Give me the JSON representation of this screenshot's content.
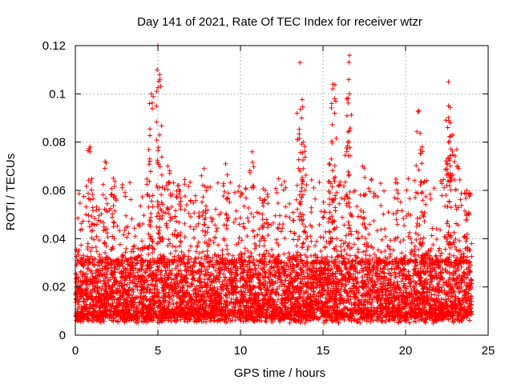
{
  "chart_data": {
    "type": "scatter",
    "title": "Day 141 of 2021, Rate Of TEC Index for receiver wtzr",
    "xlabel": "GPS time / hours",
    "ylabel": "ROTI / TECUs",
    "xlim": [
      0,
      25
    ],
    "ylim": [
      0,
      0.12
    ],
    "xticks": [
      0,
      5,
      10,
      15,
      20,
      25
    ],
    "xtick_labels": [
      "0",
      "5",
      "10",
      "15",
      "20",
      "25"
    ],
    "yticks": [
      0,
      0.02,
      0.04,
      0.06,
      0.08,
      0.1,
      0.12
    ],
    "ytick_labels": [
      "0",
      "0.02",
      "0.04",
      "0.06",
      "0.08",
      "0.1",
      "0.12"
    ],
    "grid": true,
    "marker": "+",
    "color": "#ff0000",
    "series": [
      {
        "name": "ROTI",
        "data_range": [
          0,
          24
        ],
        "baseline_band": [
          0.005,
          0.03
        ],
        "peaks": [
          {
            "x": 0.9,
            "y": 0.078
          },
          {
            "x": 1.8,
            "y": 0.072
          },
          {
            "x": 2.3,
            "y": 0.065
          },
          {
            "x": 4.6,
            "y": 0.1
          },
          {
            "x": 4.5,
            "y": 0.073
          },
          {
            "x": 5.0,
            "y": 0.12
          },
          {
            "x": 5.1,
            "y": 0.108
          },
          {
            "x": 5.1,
            "y": 0.083
          },
          {
            "x": 5.6,
            "y": 0.07
          },
          {
            "x": 6.2,
            "y": 0.062
          },
          {
            "x": 7.8,
            "y": 0.069
          },
          {
            "x": 9.1,
            "y": 0.071
          },
          {
            "x": 10.7,
            "y": 0.076
          },
          {
            "x": 11.5,
            "y": 0.06
          },
          {
            "x": 13.6,
            "y": 0.113
          },
          {
            "x": 13.7,
            "y": 0.09
          },
          {
            "x": 13.8,
            "y": 0.08
          },
          {
            "x": 13.8,
            "y": 0.069
          },
          {
            "x": 15.6,
            "y": 0.104
          },
          {
            "x": 15.7,
            "y": 0.098
          },
          {
            "x": 15.5,
            "y": 0.073
          },
          {
            "x": 16.6,
            "y": 0.116
          },
          {
            "x": 16.6,
            "y": 0.1
          },
          {
            "x": 16.5,
            "y": 0.08
          },
          {
            "x": 17.4,
            "y": 0.07
          },
          {
            "x": 19.5,
            "y": 0.063
          },
          {
            "x": 20.8,
            "y": 0.093
          },
          {
            "x": 21.0,
            "y": 0.078
          },
          {
            "x": 22.6,
            "y": 0.105
          },
          {
            "x": 22.6,
            "y": 0.095
          },
          {
            "x": 22.7,
            "y": 0.088
          },
          {
            "x": 22.6,
            "y": 0.08
          },
          {
            "x": 23.1,
            "y": 0.077
          },
          {
            "x": 23.7,
            "y": 0.06
          }
        ]
      }
    ]
  }
}
